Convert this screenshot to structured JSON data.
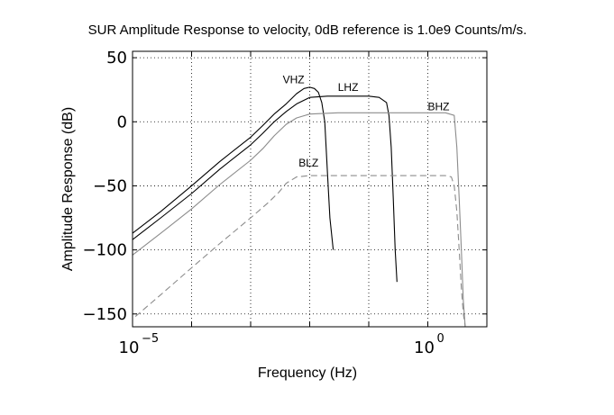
{
  "chart_data": {
    "type": "line",
    "title": "SUR Amplitude Response to velocity, 0dB reference is 1.0e9 Counts/m/s.",
    "xlabel": "Frequency (Hz)",
    "ylabel": "Amplitude Response (dB)",
    "xscale": "log",
    "xlim": [
      1e-05,
      10
    ],
    "ylim": [
      -160,
      55
    ],
    "x_ticks": [
      {
        "value": 1e-05,
        "base": "10",
        "exp": "−5"
      },
      {
        "value": 1,
        "base": "10",
        "exp": "0"
      }
    ],
    "y_ticks": [
      {
        "value": 50,
        "label": "50"
      },
      {
        "value": 0,
        "label": "0"
      },
      {
        "value": -50,
        "label": "−50"
      },
      {
        "value": -100,
        "label": "−100"
      },
      {
        "value": -150,
        "label": "−150"
      }
    ],
    "grid": true,
    "series": [
      {
        "name": "VHZ",
        "color": "#000000",
        "dash": "solid",
        "label_at": [
          0.0035,
          30
        ],
        "x": [
          1e-05,
          3e-05,
          0.0001,
          0.0003,
          0.001,
          0.0016,
          0.0025,
          0.004,
          0.006,
          0.008,
          0.01,
          0.012,
          0.014,
          0.016,
          0.018,
          0.02,
          0.022,
          0.025
        ],
        "y": [
          -87,
          -70,
          -50,
          -31,
          -12,
          -3,
          6,
          14,
          22,
          26,
          27,
          26,
          23,
          15,
          0,
          -40,
          -75,
          -100
        ]
      },
      {
        "name": "LHZ",
        "color": "#000000",
        "dash": "solid",
        "label_at": [
          0.03,
          24
        ],
        "x": [
          1e-05,
          3e-05,
          0.0001,
          0.0003,
          0.001,
          0.0016,
          0.0025,
          0.004,
          0.006,
          0.01,
          0.02,
          0.05,
          0.1,
          0.15,
          0.2,
          0.22,
          0.24,
          0.26,
          0.28,
          0.3
        ],
        "y": [
          -92,
          -75,
          -56,
          -37,
          -18,
          -9,
          0,
          8,
          14,
          19,
          20,
          20,
          20,
          19,
          15,
          5,
          -20,
          -60,
          -100,
          -125
        ]
      },
      {
        "name": "BHZ",
        "color": "#8c8c8c",
        "dash": "solid",
        "label_at": [
          1.0,
          9
        ],
        "x": [
          1e-05,
          3e-05,
          0.0001,
          0.0003,
          0.001,
          0.0016,
          0.0025,
          0.004,
          0.006,
          0.01,
          0.03,
          0.1,
          0.3,
          1,
          2,
          2.8,
          3.1,
          3.4,
          3.7,
          4,
          4.3
        ],
        "y": [
          -104,
          -87,
          -68,
          -49,
          -30,
          -21,
          -11,
          -2,
          3,
          6,
          7,
          7,
          7,
          7,
          7,
          5,
          -20,
          -60,
          -100,
          -140,
          -160
        ]
      },
      {
        "name": "BLZ",
        "color": "#8c8c8c",
        "dash": "dashed",
        "label_at": [
          0.0065,
          -35
        ],
        "x": [
          1.12e-05,
          3e-05,
          0.0001,
          0.0003,
          0.001,
          0.002,
          0.003,
          0.004,
          0.006,
          0.01,
          0.03,
          0.1,
          0.3,
          1,
          2,
          2.5,
          2.8,
          3.1,
          3.4,
          3.7,
          4,
          4.3
        ],
        "y": [
          -152,
          -135,
          -114,
          -95,
          -75,
          -63,
          -55,
          -48,
          -43,
          -42,
          -42,
          -42,
          -42,
          -42,
          -42,
          -43,
          -50,
          -70,
          -100,
          -130,
          -150,
          -160
        ]
      }
    ]
  }
}
